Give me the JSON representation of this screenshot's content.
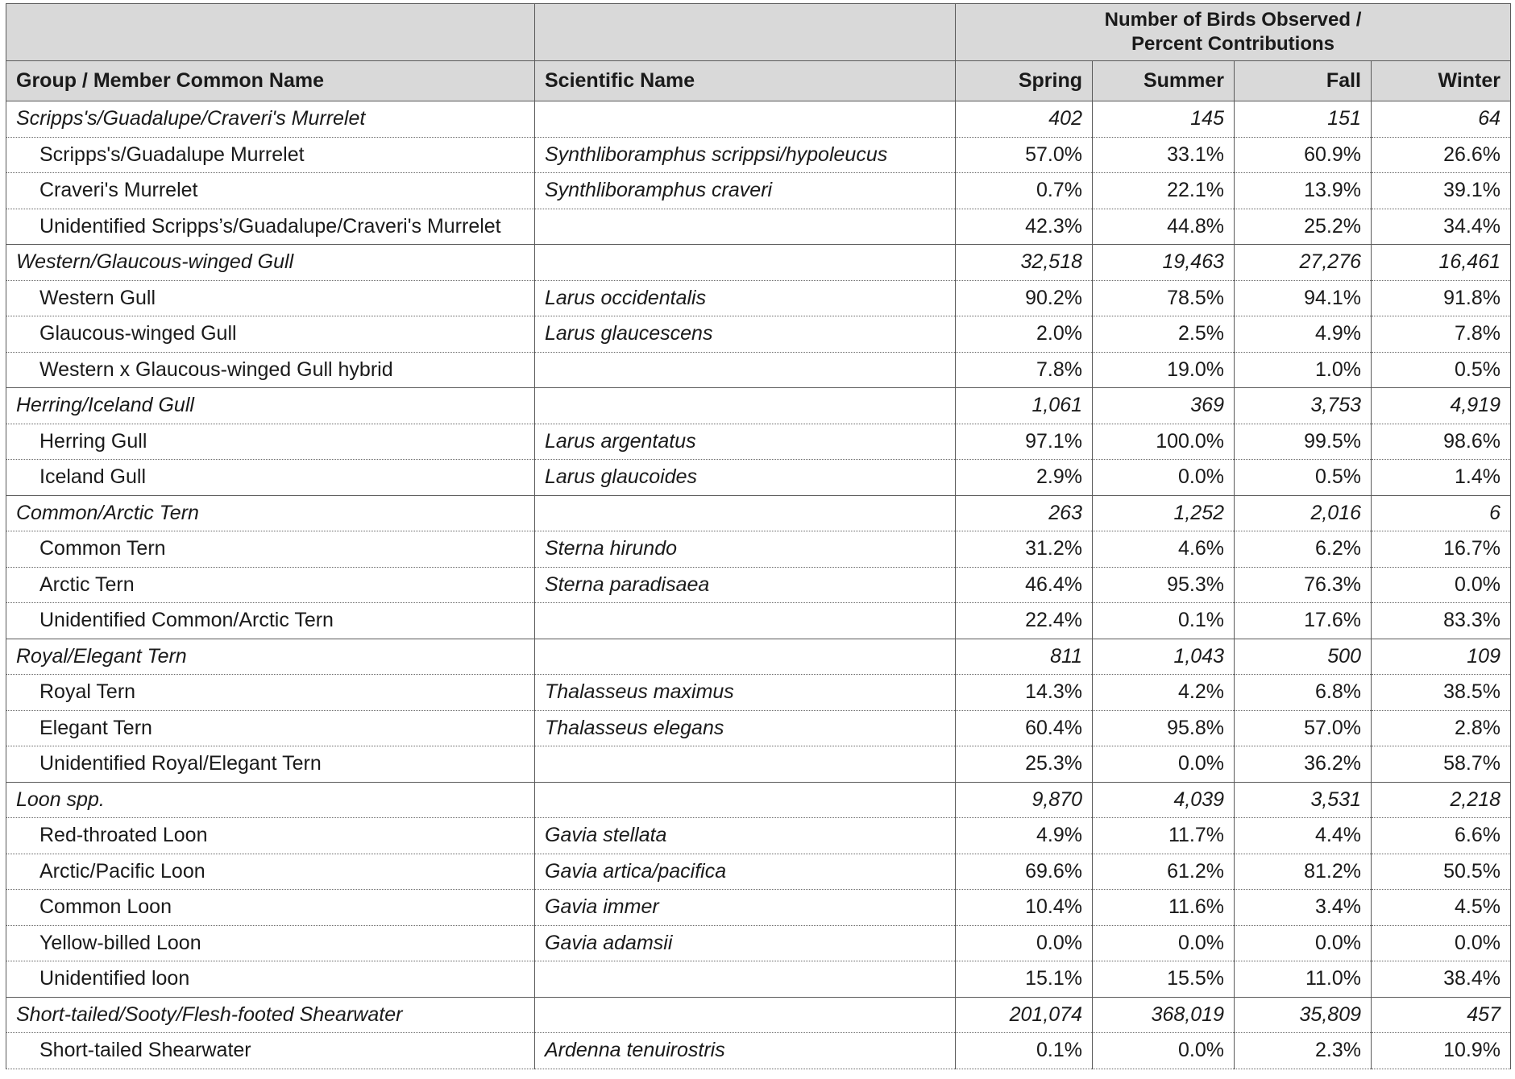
{
  "header": {
    "group_label": "Number of Birds Observed / Percent Contributions",
    "columns": [
      "Group / Member Common Name",
      "Scientific Name",
      "Spring",
      "Summer",
      "Fall",
      "Winter"
    ]
  },
  "rows": [
    {
      "type": "group",
      "name": "Scripps's/Guadalupe/Craveri's Murrelet",
      "sci": "",
      "values": [
        "402",
        "145",
        "151",
        "64"
      ]
    },
    {
      "type": "member",
      "name": "Scripps's/Guadalupe Murrelet",
      "sci": "Synthliboramphus scrippsi/hypoleucus",
      "values": [
        "57.0%",
        "33.1%",
        "60.9%",
        "26.6%"
      ]
    },
    {
      "type": "member",
      "name": "Craveri's Murrelet",
      "sci": "Synthliboramphus craveri",
      "values": [
        "0.7%",
        "22.1%",
        "13.9%",
        "39.1%"
      ]
    },
    {
      "type": "member",
      "name": "Unidentified Scripps’s/Guadalupe/Craveri's Murrelet",
      "sci": "",
      "values": [
        "42.3%",
        "44.8%",
        "25.2%",
        "34.4%"
      ]
    },
    {
      "type": "group",
      "name": "Western/Glaucous-winged Gull",
      "sci": "",
      "values": [
        "32,518",
        "19,463",
        "27,276",
        "16,461"
      ]
    },
    {
      "type": "member",
      "name": "Western Gull",
      "sci": "Larus occidentalis",
      "values": [
        "90.2%",
        "78.5%",
        "94.1%",
        "91.8%"
      ]
    },
    {
      "type": "member",
      "name": "Glaucous-winged Gull",
      "sci": "Larus glaucescens",
      "values": [
        "2.0%",
        "2.5%",
        "4.9%",
        "7.8%"
      ]
    },
    {
      "type": "member",
      "name": "Western x Glaucous-winged Gull hybrid",
      "sci": "",
      "values": [
        "7.8%",
        "19.0%",
        "1.0%",
        "0.5%"
      ]
    },
    {
      "type": "group",
      "name": "Herring/Iceland Gull",
      "sci": "",
      "values": [
        "1,061",
        "369",
        "3,753",
        "4,919"
      ]
    },
    {
      "type": "member",
      "name": "Herring Gull",
      "sci": "Larus argentatus",
      "values": [
        "97.1%",
        "100.0%",
        "99.5%",
        "98.6%"
      ]
    },
    {
      "type": "member",
      "name": "Iceland Gull",
      "sci": "Larus glaucoides",
      "values": [
        "2.9%",
        "0.0%",
        "0.5%",
        "1.4%"
      ]
    },
    {
      "type": "group",
      "name": "Common/Arctic Tern",
      "sci": "",
      "values": [
        "263",
        "1,252",
        "2,016",
        "6"
      ]
    },
    {
      "type": "member",
      "name": "Common Tern",
      "sci": "Sterna hirundo",
      "values": [
        "31.2%",
        "4.6%",
        "6.2%",
        "16.7%"
      ]
    },
    {
      "type": "member",
      "name": "Arctic Tern",
      "sci": "Sterna paradisaea",
      "values": [
        "46.4%",
        "95.3%",
        "76.3%",
        "0.0%"
      ]
    },
    {
      "type": "member",
      "name": "Unidentified Common/Arctic Tern",
      "sci": "",
      "values": [
        "22.4%",
        "0.1%",
        "17.6%",
        "83.3%"
      ]
    },
    {
      "type": "group",
      "name": "Royal/Elegant Tern",
      "sci": "",
      "values": [
        "811",
        "1,043",
        "500",
        "109"
      ]
    },
    {
      "type": "member",
      "name": "Royal Tern",
      "sci": "Thalasseus maximus",
      "values": [
        "14.3%",
        "4.2%",
        "6.8%",
        "38.5%"
      ]
    },
    {
      "type": "member",
      "name": "Elegant Tern",
      "sci": "Thalasseus elegans",
      "values": [
        "60.4%",
        "95.8%",
        "57.0%",
        "2.8%"
      ]
    },
    {
      "type": "member",
      "name": "Unidentified Royal/Elegant Tern",
      "sci": "",
      "values": [
        "25.3%",
        "0.0%",
        "36.2%",
        "58.7%"
      ]
    },
    {
      "type": "group",
      "name": "Loon spp.",
      "sci": "",
      "values": [
        "9,870",
        "4,039",
        "3,531",
        "2,218"
      ]
    },
    {
      "type": "member",
      "name": "Red-throated Loon",
      "sci": "Gavia stellata",
      "values": [
        "4.9%",
        "11.7%",
        "4.4%",
        "6.6%"
      ]
    },
    {
      "type": "member",
      "name": "Arctic/Pacific Loon",
      "sci": "Gavia artica/pacifica",
      "values": [
        "69.6%",
        "61.2%",
        "81.2%",
        "50.5%"
      ]
    },
    {
      "type": "member",
      "name": "Common Loon",
      "sci": "Gavia immer",
      "values": [
        "10.4%",
        "11.6%",
        "3.4%",
        "4.5%"
      ]
    },
    {
      "type": "member",
      "name": "Yellow-billed Loon",
      "sci": "Gavia adamsii",
      "values": [
        "0.0%",
        "0.0%",
        "0.0%",
        "0.0%"
      ]
    },
    {
      "type": "member",
      "name": "Unidentified loon",
      "sci": "",
      "values": [
        "15.1%",
        "15.5%",
        "11.0%",
        "38.4%"
      ]
    },
    {
      "type": "group",
      "name": "Short-tailed/Sooty/Flesh-footed Shearwater",
      "sci": "",
      "values": [
        "201,074",
        "368,019",
        "35,809",
        "457"
      ]
    },
    {
      "type": "member",
      "name": "Short-tailed Shearwater",
      "sci": "Ardenna tenuirostris",
      "values": [
        "0.1%",
        "0.0%",
        "2.3%",
        "10.9%"
      ]
    }
  ]
}
